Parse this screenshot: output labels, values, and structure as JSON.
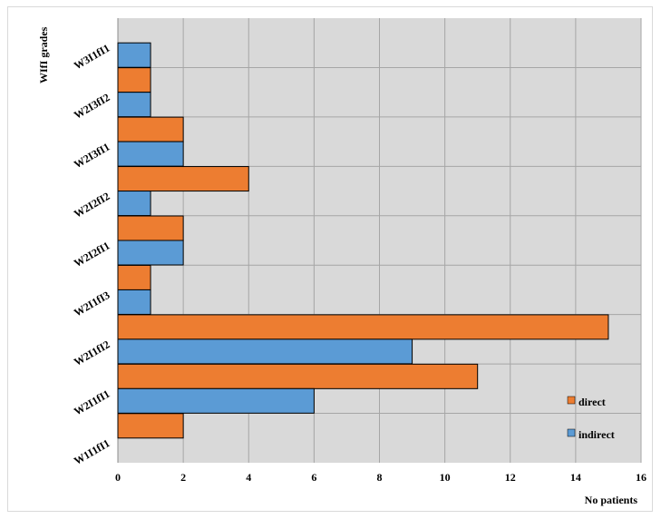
{
  "chart_data": {
    "type": "bar",
    "orientation": "horizontal",
    "title": "",
    "ylabel": "WIfI grades",
    "xlabel": "No patients",
    "xlim": [
      0,
      16
    ],
    "xticks": [
      0,
      2,
      4,
      6,
      8,
      10,
      12,
      14,
      16
    ],
    "grid": true,
    "legend_position": "bottom-right",
    "categories": [
      "W1I1fI1",
      "W2I1fI1",
      "W2I1fI2",
      "W2I1fI3",
      "W2I2fI1",
      "W2I2fI2",
      "W2I3fI1",
      "W2I3fI2",
      "W3I1fI1"
    ],
    "series": [
      {
        "name": "direct",
        "color": "#ED7D31",
        "values": [
          2,
          11,
          15,
          1,
          2,
          4,
          2,
          1,
          0
        ]
      },
      {
        "name": "indirect",
        "color": "#5B9BD5",
        "values": [
          0,
          6,
          9,
          1,
          2,
          1,
          2,
          1,
          1
        ]
      }
    ],
    "legend": [
      "direct",
      "indirect"
    ]
  },
  "colors": {
    "plot_background": "#D9D9D9",
    "grid": "#A6A6A6",
    "bar_border": "#000000"
  }
}
